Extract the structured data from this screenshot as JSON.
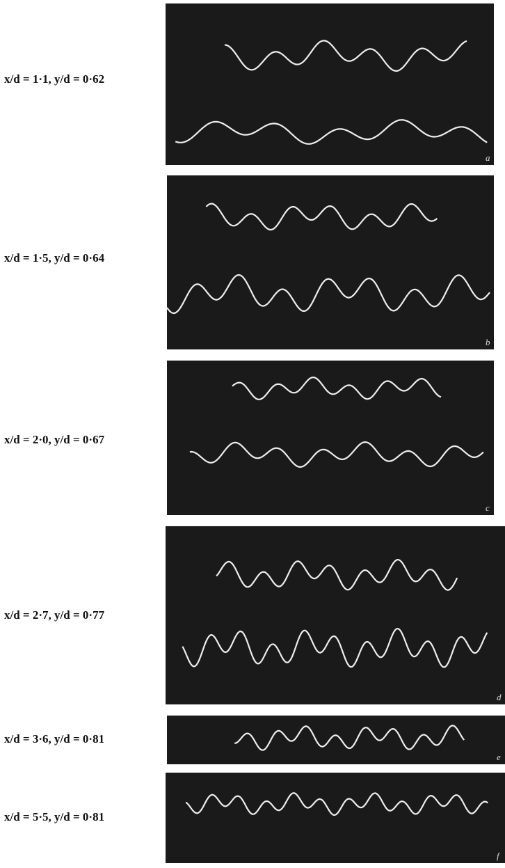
{
  "panels": [
    {
      "label": "x/d = 1·1, y/d = 0·62",
      "letter": "a"
    },
    {
      "label": "x/d = 1·5, y/d = 0·64",
      "letter": "b"
    },
    {
      "label": "x/d = 2·0, y/d = 0·67",
      "letter": "c"
    },
    {
      "label": "x/d = 2·7, y/d = 0·77",
      "letter": "d"
    },
    {
      "label": "x/d = 3·6, y/d = 0·81",
      "letter": "e"
    },
    {
      "label": "x/d = 5·5, y/d = 0·81",
      "letter": "f"
    }
  ]
}
